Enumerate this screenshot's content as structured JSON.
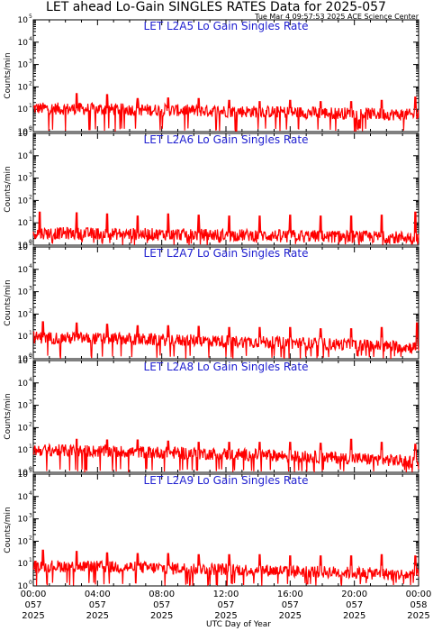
{
  "title": "LET ahead Lo-Gain SINGLES RATES Data for 2025-057",
  "subtitle": "Tue Mar  4 09:57:53 2025 ACE Science Center",
  "xlabel": "UTC Day of Year",
  "colors": {
    "series": "#ff0000",
    "panel_label": "#2020d0",
    "axes": "#000000"
  },
  "chart_data": [
    {
      "type": "line",
      "title": "LET L2A5 Lo Gain Singles Rate",
      "ylabel": "Counts/min",
      "yscale": "log",
      "ylim": [
        1,
        100000
      ],
      "ytick_exponents": [
        0,
        1,
        2,
        3,
        4,
        5
      ],
      "xlim": [
        0,
        24
      ],
      "xticks": [
        {
          "time": "00:00",
          "day": "057",
          "year": "2025"
        },
        {
          "time": "04:00",
          "day": "057",
          "year": "2025"
        },
        {
          "time": "08:00",
          "day": "057",
          "year": "2025"
        },
        {
          "time": "12:00",
          "day": "057",
          "year": "2025"
        },
        {
          "time": "16:00",
          "day": "057",
          "year": "2025"
        },
        {
          "time": "20:00",
          "day": "057",
          "year": "2025"
        },
        {
          "time": "00:00",
          "day": "058",
          "year": "2025"
        }
      ],
      "baseline_start": 11,
      "baseline_end": 5.5,
      "spikes": [
        {
          "hour": 2.7,
          "value": 50
        },
        {
          "hour": 4.6,
          "value": 45
        },
        {
          "hour": 6.5,
          "value": 30
        },
        {
          "hour": 8.4,
          "value": 32
        },
        {
          "hour": 10.3,
          "value": 30
        },
        {
          "hour": 12.2,
          "value": 25
        },
        {
          "hour": 14.1,
          "value": 22
        },
        {
          "hour": 16.0,
          "value": 25
        },
        {
          "hour": 17.9,
          "value": 22
        },
        {
          "hour": 19.8,
          "value": 22
        },
        {
          "hour": 21.7,
          "value": 25
        },
        {
          "hour": 23.8,
          "value": 35
        }
      ]
    },
    {
      "type": "line",
      "title": "LET L2A6 Lo Gain Singles Rate",
      "ylabel": "Counts/min",
      "yscale": "log",
      "ylim": [
        1,
        100000
      ],
      "ytick_exponents": [
        0,
        1,
        2,
        3,
        4,
        5
      ],
      "xlim": [
        0,
        24
      ],
      "xticks": [],
      "baseline_start": 3.5,
      "baseline_end": 2.2,
      "spikes": [
        {
          "hour": 0.4,
          "value": 30
        },
        {
          "hour": 2.7,
          "value": 28
        },
        {
          "hour": 4.6,
          "value": 25
        },
        {
          "hour": 6.5,
          "value": 20
        },
        {
          "hour": 8.4,
          "value": 25
        },
        {
          "hour": 10.3,
          "value": 22
        },
        {
          "hour": 12.2,
          "value": 20
        },
        {
          "hour": 14.1,
          "value": 20
        },
        {
          "hour": 16.0,
          "value": 22
        },
        {
          "hour": 17.9,
          "value": 20
        },
        {
          "hour": 19.8,
          "value": 20
        },
        {
          "hour": 21.7,
          "value": 22
        },
        {
          "hour": 23.8,
          "value": 30
        }
      ]
    },
    {
      "type": "line",
      "title": "LET L2A7 Lo Gain Singles Rate",
      "ylabel": "Counts/min",
      "yscale": "log",
      "ylim": [
        1,
        100000
      ],
      "ytick_exponents": [
        0,
        1,
        2,
        3,
        4,
        5
      ],
      "xlim": [
        0,
        24
      ],
      "xticks": [],
      "baseline_start": 9,
      "baseline_end": 3.2,
      "spikes": [
        {
          "hour": 0.6,
          "value": 45
        },
        {
          "hour": 2.7,
          "value": 40
        },
        {
          "hour": 4.6,
          "value": 35
        },
        {
          "hour": 6.5,
          "value": 30
        },
        {
          "hour": 8.4,
          "value": 30
        },
        {
          "hour": 10.3,
          "value": 28
        },
        {
          "hour": 12.2,
          "value": 25
        },
        {
          "hour": 14.1,
          "value": 25
        },
        {
          "hour": 16.0,
          "value": 25
        },
        {
          "hour": 17.9,
          "value": 22
        },
        {
          "hour": 19.8,
          "value": 22
        },
        {
          "hour": 21.7,
          "value": 25
        },
        {
          "hour": 23.9,
          "value": 40
        }
      ]
    },
    {
      "type": "line",
      "title": "LET L2A8 Lo Gain Singles Rate",
      "ylabel": "Counts/min",
      "yscale": "log",
      "ylim": [
        1,
        100000
      ],
      "ytick_exponents": [
        0,
        1,
        2,
        3,
        4,
        5
      ],
      "xlim": [
        0,
        24
      ],
      "xticks": [],
      "baseline_start": 10,
      "baseline_end": 3.0,
      "spikes": [
        {
          "hour": 2.7,
          "value": 30
        },
        {
          "hour": 4.6,
          "value": 28
        },
        {
          "hour": 6.5,
          "value": 28
        },
        {
          "hour": 8.4,
          "value": 25
        },
        {
          "hour": 10.3,
          "value": 22
        },
        {
          "hour": 12.2,
          "value": 22
        },
        {
          "hour": 14.1,
          "value": 22
        },
        {
          "hour": 16.0,
          "value": 22
        },
        {
          "hour": 17.9,
          "value": 20
        },
        {
          "hour": 19.8,
          "value": 30
        },
        {
          "hour": 21.7,
          "value": 22
        },
        {
          "hour": 23.8,
          "value": 18
        }
      ]
    },
    {
      "type": "line",
      "title": "LET L2A9 Lo Gain Singles Rate",
      "ylabel": "Counts/min",
      "yscale": "log",
      "ylim": [
        1,
        100000
      ],
      "ytick_exponents": [
        0,
        1,
        2,
        3,
        4,
        5
      ],
      "xlim": [
        0,
        24
      ],
      "xticks": [],
      "baseline_start": 8,
      "baseline_end": 3.0,
      "spikes": [
        {
          "hour": 0.6,
          "value": 40
        },
        {
          "hour": 2.7,
          "value": 35
        },
        {
          "hour": 4.6,
          "value": 30
        },
        {
          "hour": 6.5,
          "value": 28
        },
        {
          "hour": 8.4,
          "value": 28
        },
        {
          "hour": 10.3,
          "value": 25
        },
        {
          "hour": 12.2,
          "value": 25
        },
        {
          "hour": 14.1,
          "value": 25
        },
        {
          "hour": 16.0,
          "value": 22
        },
        {
          "hour": 17.9,
          "value": 22
        },
        {
          "hour": 19.8,
          "value": 22
        },
        {
          "hour": 21.7,
          "value": 25
        },
        {
          "hour": 23.8,
          "value": 22
        }
      ]
    }
  ]
}
